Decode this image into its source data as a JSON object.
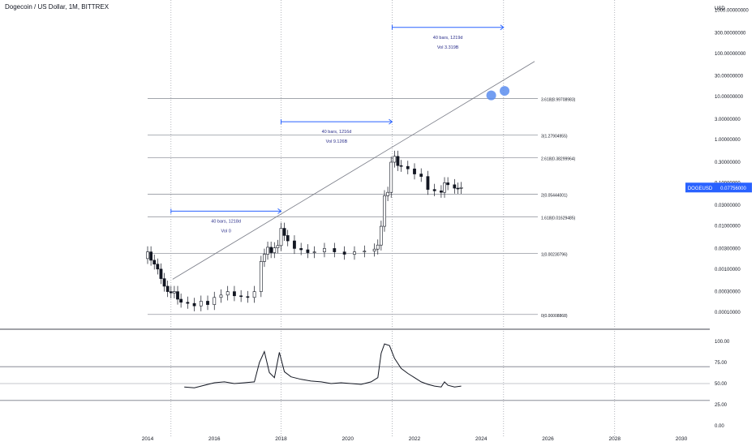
{
  "header": {
    "title": "Dogecoin / US Dollar, 1M, BITTREX"
  },
  "price_axis": {
    "currency_label": "USD",
    "ticks": [
      "3000.00000000",
      "1000.00000000",
      "300.00000000",
      "100.00000000",
      "30.00000000",
      "10.00000000",
      "3.00000000",
      "1.00000000",
      "0.30000000",
      "0.10000000",
      "0.03000000",
      "0.01000000",
      "0.00300000",
      "0.00100000",
      "0.00030000",
      "0.00010000"
    ],
    "tick_values": [
      3000,
      1000,
      300,
      100,
      30,
      10,
      3,
      1,
      0.3,
      0.1,
      0.03,
      0.01,
      0.003,
      0.001,
      0.0003,
      0.0001
    ],
    "current_symbol": "DOGEUSD",
    "current_price": "0.07756000",
    "current_value": 0.07756,
    "badge_color": "#2962ff"
  },
  "time_axis": {
    "ticks": [
      "2014",
      "2016",
      "2018",
      "2020",
      "2022",
      "2024",
      "2026",
      "2028",
      "2030"
    ],
    "tick_years": [
      2014,
      2016,
      2018,
      2020,
      2022,
      2024,
      2026,
      2028,
      2030
    ]
  },
  "fib_levels": [
    {
      "label": "3.618(8.99708983)",
      "value": 8.99708983
    },
    {
      "label": "3(1.27904955)",
      "value": 1.27904955
    },
    {
      "label": "2.618(0.38299964)",
      "value": 0.38299964
    },
    {
      "label": "2(0.05444001)",
      "value": 0.05444001
    },
    {
      "label": "1.618(0.01629485)",
      "value": 0.01629485
    },
    {
      "label": "1(0.00230796)",
      "value": 0.00230796
    },
    {
      "label": "0(0.00008868)",
      "value": 8.868e-05
    }
  ],
  "measurements": [
    {
      "line1": "40 bars, 1218d",
      "line2": "Vol 0",
      "start_year": 2014.7,
      "end_year": 2018.0,
      "value": 0.022
    },
    {
      "line1": "40 bars, 1216d",
      "line2": "Vol 9.126B",
      "start_year": 2018.0,
      "end_year": 2021.33,
      "value": 2.6
    },
    {
      "line1": "40 bars, 1219d",
      "line2": "Vol 3.319B",
      "start_year": 2021.33,
      "end_year": 2024.67,
      "value": 400
    }
  ],
  "trendline": {
    "start": {
      "year": 2014.75,
      "value": 0.00058
    },
    "end": {
      "year": 2025.6,
      "value": 65
    }
  },
  "markers": [
    {
      "year": 2024.3,
      "value": 10.6
    },
    {
      "year": 2024.7,
      "value": 13.5
    }
  ],
  "time_markers_years": [
    2014.7,
    2018.0,
    2021.33,
    2024.67,
    2028.0
  ],
  "oscillator": {
    "ticks": [
      "100.00",
      "75.00",
      "50.00",
      "25.00",
      "0.00"
    ],
    "tick_values": [
      100,
      75,
      50,
      25,
      0
    ],
    "levels": [
      70,
      50,
      30
    ]
  },
  "chart_data": [
    {
      "type": "candlestick",
      "title": "Dogecoin / US Dollar, 1M, BITTREX",
      "yscale": "log",
      "ylim": [
        0.0001,
        3000
      ],
      "xlim": [
        2014,
        2030.5
      ],
      "series": [
        {
          "name": "DOGEUSD",
          "x": [
            2014.0,
            2014.1,
            2014.2,
            2014.3,
            2014.4,
            2014.5,
            2014.6,
            2014.7,
            2014.8,
            2014.9,
            2015.0,
            2015.2,
            2015.4,
            2015.6,
            2015.8,
            2016.0,
            2016.2,
            2016.4,
            2016.6,
            2016.8,
            2017.0,
            2017.2,
            2017.4,
            2017.5,
            2017.6,
            2017.7,
            2017.8,
            2017.9,
            2018.0,
            2018.1,
            2018.2,
            2018.4,
            2018.6,
            2018.8,
            2019.0,
            2019.3,
            2019.6,
            2019.9,
            2020.2,
            2020.5,
            2020.8,
            2020.9,
            2021.0,
            2021.1,
            2021.2,
            2021.3,
            2021.4,
            2021.5,
            2021.6,
            2021.8,
            2022.0,
            2022.2,
            2022.4,
            2022.6,
            2022.8,
            2022.9,
            2023.0,
            2023.2,
            2023.3,
            2023.4
          ],
          "close": [
            0.0025,
            0.0016,
            0.0013,
            0.001,
            0.0006,
            0.0004,
            0.0003,
            0.00028,
            0.0003,
            0.0002,
            0.00017,
            0.00016,
            0.00014,
            0.00018,
            0.00015,
            0.00022,
            0.00025,
            0.0003,
            0.00024,
            0.00023,
            0.00022,
            0.0003,
            0.0015,
            0.0022,
            0.0032,
            0.0024,
            0.0031,
            0.0035,
            0.0088,
            0.006,
            0.0045,
            0.003,
            0.0028,
            0.0024,
            0.0025,
            0.003,
            0.0025,
            0.0022,
            0.0025,
            0.0026,
            0.0029,
            0.0036,
            0.0098,
            0.05,
            0.06,
            0.3,
            0.41,
            0.25,
            0.24,
            0.21,
            0.16,
            0.14,
            0.07,
            0.065,
            0.06,
            0.1,
            0.09,
            0.075,
            0.074,
            0.07756
          ]
        }
      ]
    },
    {
      "type": "line",
      "title": "",
      "ylim": [
        0,
        100
      ],
      "series": [
        {
          "name": "",
          "x": [
            2015.1,
            2015.4,
            2015.7,
            2016.0,
            2016.3,
            2016.6,
            2016.9,
            2017.2,
            2017.35,
            2017.5,
            2017.65,
            2017.8,
            2017.95,
            2018.1,
            2018.3,
            2018.6,
            2018.9,
            2019.2,
            2019.5,
            2019.8,
            2020.1,
            2020.4,
            2020.7,
            2020.9,
            2021.0,
            2021.1,
            2021.25,
            2021.4,
            2021.6,
            2021.8,
            2022.0,
            2022.2,
            2022.4,
            2022.6,
            2022.8,
            2022.9,
            2023.0,
            2023.2,
            2023.4
          ],
          "values": [
            46,
            45,
            48,
            51,
            52,
            50,
            51,
            52,
            75,
            88,
            63,
            57,
            87,
            64,
            58,
            55,
            53,
            52,
            50,
            51,
            50,
            49,
            52,
            57,
            86,
            97,
            95,
            80,
            68,
            62,
            57,
            52,
            49,
            47,
            46,
            52,
            48,
            46,
            47
          ]
        }
      ]
    }
  ]
}
